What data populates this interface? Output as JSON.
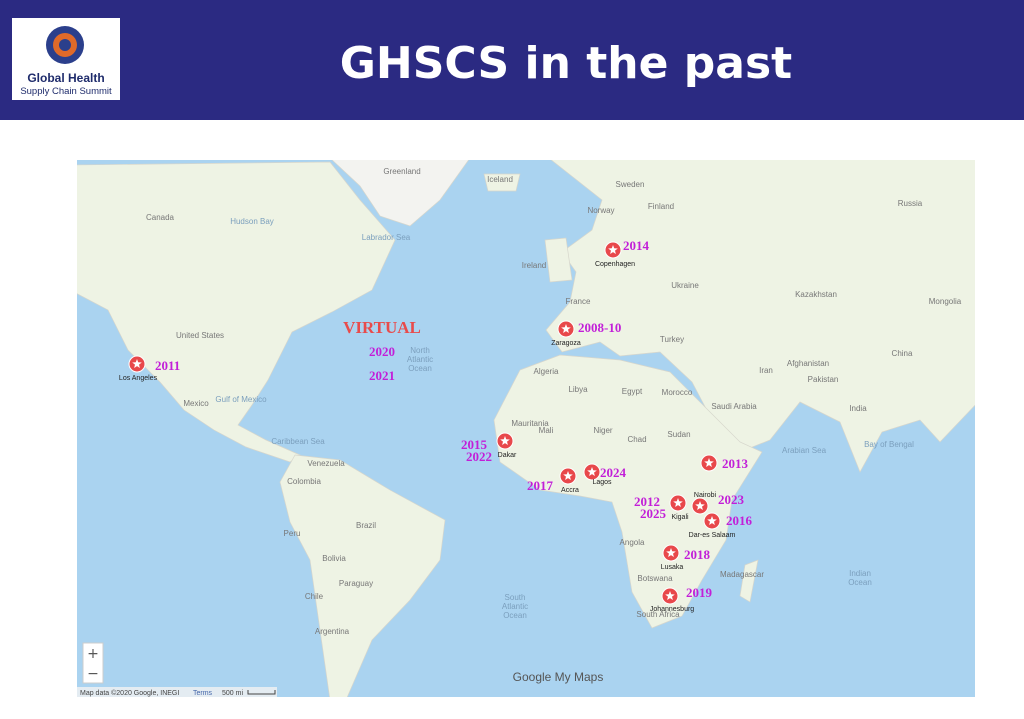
{
  "header": {
    "logo_line1": "Global Health",
    "logo_line2": "Supply Chain Summit",
    "title": "GHSCS in the past"
  },
  "map": {
    "virtual": [
      "VIRTUAL",
      "2020",
      "2021"
    ],
    "markers": [
      {
        "city": "Los Angeles",
        "years": [
          "2011"
        ]
      },
      {
        "city": "Copenhagen",
        "years": [
          "2014"
        ]
      },
      {
        "city": "Zaragoza",
        "years": [
          "2008-10"
        ]
      },
      {
        "city": "Dakar",
        "years": [
          "2015",
          "2022"
        ]
      },
      {
        "city": "Accra",
        "years": [
          "2017"
        ]
      },
      {
        "city": "Lagos",
        "years": [
          "2024"
        ]
      },
      {
        "city": "Kigali",
        "years": [
          "2012",
          "2025"
        ]
      },
      {
        "city": "Nairobi",
        "years": [
          "2023"
        ]
      },
      {
        "city": "Dar-es Salaam",
        "years": [
          "2016"
        ]
      },
      {
        "years": [
          "2013"
        ]
      },
      {
        "city": "Lusaka",
        "years": [
          "2018"
        ]
      },
      {
        "city": "Johannesburg",
        "years": [
          "2019"
        ]
      }
    ],
    "places": [
      "Greenland",
      "Iceland",
      "Canada",
      "Hudson Bay",
      "Labrador Sea",
      "United States",
      "Mexico",
      "Gulf of Mexico",
      "Caribbean Sea",
      "Venezuela",
      "Colombia",
      "Peru",
      "Brazil",
      "Bolivia",
      "Paraguay",
      "Chile",
      "Argentina",
      "Sweden",
      "Norway",
      "Finland",
      "Russia",
      "Ireland",
      "France",
      "Ukraine",
      "Turkey",
      "Iran",
      "Morocco",
      "Algeria",
      "Libya",
      "Egypt",
      "Mauritania",
      "Mali",
      "Niger",
      "Chad",
      "Sudan",
      "Angola",
      "Botswana",
      "South Africa",
      "Madagascar",
      "Saudi Arabia",
      "Kazakhstan",
      "Mongolia",
      "China",
      "Afghanistan",
      "Pakistan",
      "India",
      "Arabian Sea",
      "Bay of Bengal",
      "North",
      "Atlantic",
      "Ocean",
      "South",
      "Atlantic",
      "Ocean",
      "Indian",
      "Ocean"
    ],
    "zoom_in": "+",
    "zoom_out": "−",
    "attribution": "Map data ©2020 Google, INEGI",
    "terms": "Terms",
    "scale": "500 mi",
    "brand": "Google My Maps"
  }
}
